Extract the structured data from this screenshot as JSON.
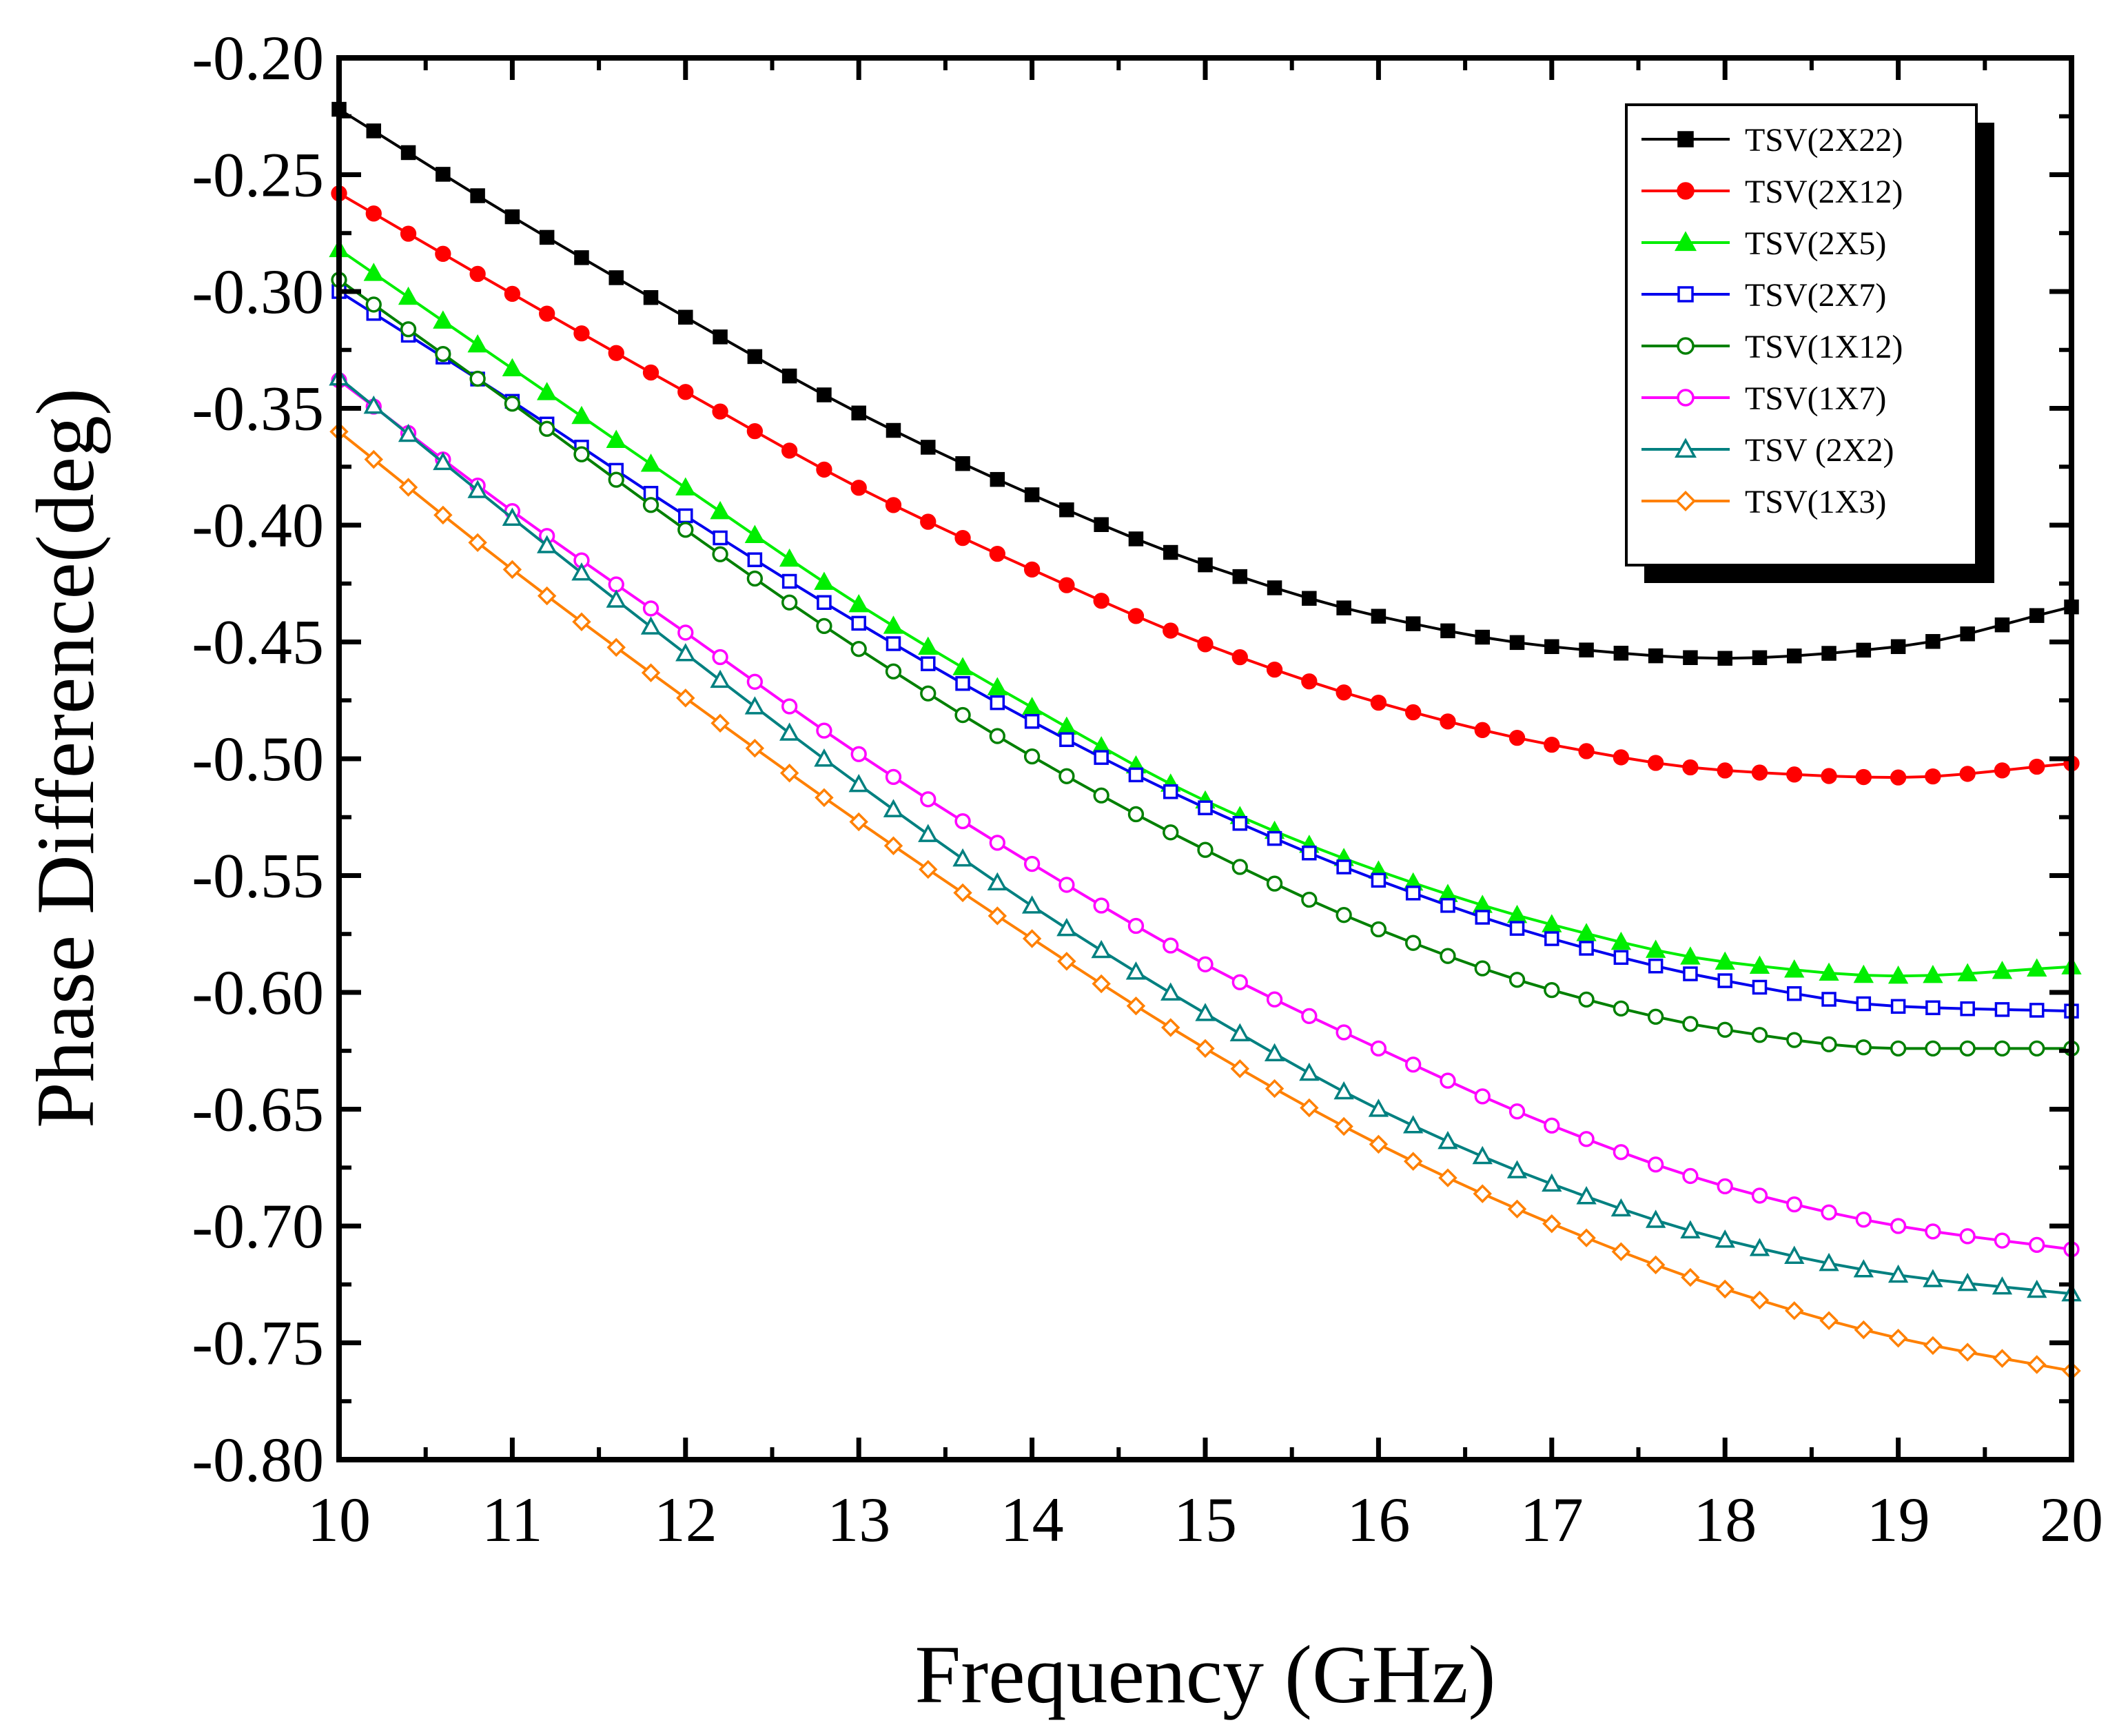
{
  "chart_data": {
    "type": "line",
    "title": "",
    "xlabel": "Frequency (GHz)",
    "ylabel": "Phase Difference(deg)",
    "xlim": [
      10,
      20
    ],
    "ylim": [
      -0.8,
      -0.2
    ],
    "x_ticks": [
      10,
      11,
      12,
      13,
      14,
      15,
      16,
      17,
      18,
      19,
      20
    ],
    "x_tick_labels": [
      "10",
      "11",
      "12",
      "13",
      "14",
      "15",
      "16",
      "17",
      "18",
      "19",
      "20"
    ],
    "y_ticks": [
      -0.2,
      -0.25,
      -0.3,
      -0.35,
      -0.4,
      -0.45,
      -0.5,
      -0.55,
      -0.6,
      -0.65,
      -0.7,
      -0.75,
      -0.8
    ],
    "y_tick_labels": [
      "-0.20",
      "-0.25",
      "-0.30",
      "-0.35",
      "-0.40",
      "-0.45",
      "-0.50",
      "-0.55",
      "-0.60",
      "-0.65",
      "-0.70",
      "-0.75",
      "-0.80"
    ],
    "grid": false,
    "legend_position": "top-right",
    "x_step": 0.2,
    "series": [
      {
        "name": "TSV(2X22)",
        "color": "#000000",
        "marker": "square",
        "filled": true,
        "anchors_x": [
          10,
          11,
          12,
          13,
          14,
          15,
          16,
          17,
          18,
          19,
          20
        ],
        "anchors_y": [
          -0.222,
          -0.268,
          -0.311,
          -0.352,
          -0.387,
          -0.417,
          -0.439,
          -0.452,
          -0.457,
          -0.452,
          -0.435
        ]
      },
      {
        "name": "TSV(2X12)",
        "color": "#ff0000",
        "marker": "circle",
        "filled": true,
        "anchors_x": [
          10,
          11,
          12,
          13,
          14,
          15,
          16,
          17,
          18,
          19,
          20
        ],
        "anchors_y": [
          -0.258,
          -0.301,
          -0.343,
          -0.384,
          -0.419,
          -0.451,
          -0.476,
          -0.494,
          -0.505,
          -0.508,
          -0.502
        ]
      },
      {
        "name": "TSV(2X5)",
        "color": "#00ee00",
        "marker": "triangle",
        "filled": true,
        "anchors_x": [
          10,
          11,
          12,
          13,
          14,
          15,
          16,
          17,
          18,
          19,
          20
        ],
        "anchors_y": [
          -0.282,
          -0.333,
          -0.384,
          -0.434,
          -0.478,
          -0.518,
          -0.548,
          -0.571,
          -0.587,
          -0.593,
          -0.589
        ]
      },
      {
        "name": "TSV(2X7)",
        "color": "#0000ee",
        "marker": "square",
        "filled": false,
        "anchors_x": [
          10,
          11,
          12,
          13,
          14,
          15,
          16,
          17,
          18,
          19,
          20
        ],
        "anchors_y": [
          -0.3,
          -0.347,
          -0.396,
          -0.442,
          -0.484,
          -0.521,
          -0.552,
          -0.577,
          -0.595,
          -0.606,
          -0.608
        ]
      },
      {
        "name": "TSV(1X12)",
        "color": "#008000",
        "marker": "circle",
        "filled": false,
        "anchors_x": [
          10,
          11,
          12,
          13,
          14,
          15,
          16,
          17,
          18,
          19,
          20
        ],
        "anchors_y": [
          -0.295,
          -0.348,
          -0.402,
          -0.453,
          -0.499,
          -0.539,
          -0.573,
          -0.599,
          -0.616,
          -0.624,
          -0.624
        ]
      },
      {
        "name": "TSV(1X7)",
        "color": "#ff00ff",
        "marker": "circle",
        "filled": false,
        "anchors_x": [
          10,
          11,
          12,
          13,
          14,
          15,
          16,
          17,
          18,
          19,
          20
        ],
        "anchors_y": [
          -0.338,
          -0.394,
          -0.446,
          -0.498,
          -0.545,
          -0.588,
          -0.624,
          -0.657,
          -0.683,
          -0.7,
          -0.71
        ]
      },
      {
        "name": "TSV (2X2)",
        "color": "#008080",
        "marker": "triangle",
        "filled": false,
        "anchors_x": [
          10,
          11,
          12,
          13,
          14,
          15,
          16,
          17,
          18,
          19,
          20
        ],
        "anchors_y": [
          -0.337,
          -0.397,
          -0.455,
          -0.511,
          -0.563,
          -0.609,
          -0.65,
          -0.682,
          -0.706,
          -0.721,
          -0.729
        ]
      },
      {
        "name": "TSV(1X3)",
        "color": "#ff8000",
        "marker": "diamond",
        "filled": false,
        "anchors_x": [
          10,
          11,
          12,
          13,
          14,
          15,
          16,
          17,
          18,
          19,
          20
        ],
        "anchors_y": [
          -0.36,
          -0.419,
          -0.474,
          -0.527,
          -0.577,
          -0.624,
          -0.665,
          -0.699,
          -0.727,
          -0.748,
          -0.762
        ]
      }
    ]
  }
}
